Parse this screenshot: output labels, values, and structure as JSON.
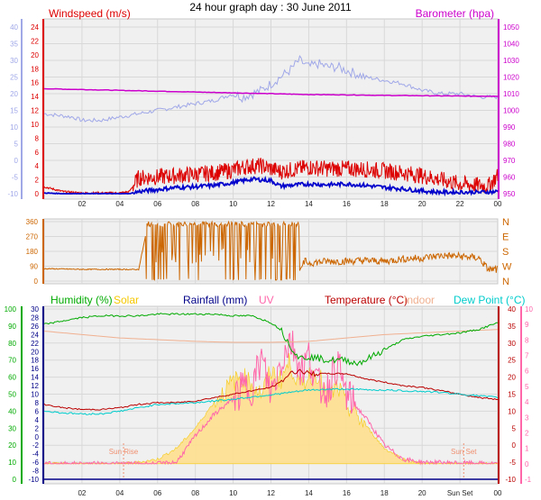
{
  "title": "24 hour graph day : 30 June 2011",
  "time_ticks": [
    "02",
    "04",
    "06",
    "08",
    "10",
    "12",
    "14",
    "16",
    "18",
    "20",
    "22",
    "00"
  ],
  "time_ticks_bottom": [
    "02",
    "04",
    "06",
    "08",
    "10",
    "12",
    "14",
    "16",
    "18",
    "20",
    "Sun Set",
    "00"
  ],
  "colors": {
    "windspeed": "#dd0000",
    "windavg": "#0000cc",
    "gust": "#a0a8e8",
    "barometer": "#cc00cc",
    "direction": "#cc6600",
    "humidity": "#00aa00",
    "solar": "#f5c800",
    "rainfall": "#000088",
    "uv": "#ff66aa",
    "temperature": "#bb0000",
    "indoor": "#f0b090",
    "dewpoint": "#00cccc",
    "plot_bg": "#f0f0f0",
    "left_axis": "#a0a8e8"
  },
  "chart_data": [
    {
      "id": "wind",
      "type": "line",
      "legend": {
        "windspeed": "Windspeed (m/s)",
        "barometer": "Barometer (hpa)"
      },
      "axes": {
        "left_outer": {
          "ticks": [
            -10,
            -5,
            0,
            5,
            10,
            15,
            20,
            25,
            30,
            35,
            40
          ],
          "color": "#a0a8e8"
        },
        "left_inner": {
          "ticks": [
            0,
            2,
            4,
            6,
            8,
            10,
            12,
            14,
            16,
            18,
            20,
            22,
            24
          ],
          "color": "#dd0000"
        },
        "right": {
          "ticks": [
            950,
            960,
            970,
            980,
            990,
            1000,
            1010,
            1020,
            1030,
            1040,
            1050
          ],
          "color": "#cc00cc"
        }
      },
      "series": [
        {
          "key": "gust",
          "x": [
            0,
            1.5,
            2,
            3,
            4,
            5,
            6,
            7,
            8,
            9,
            10,
            10.5,
            11,
            11.5,
            12,
            12.5,
            13,
            13.5,
            14,
            14.5,
            15,
            15.5,
            16,
            16.5,
            17,
            18,
            19,
            20,
            21,
            22,
            23,
            24
          ],
          "y": [
            14,
            13,
            12,
            12,
            13,
            14,
            15,
            16,
            17,
            18,
            20,
            19,
            20,
            21,
            23,
            25,
            27,
            30,
            28,
            29,
            28,
            28,
            27,
            26,
            25,
            24,
            23,
            21,
            20,
            20,
            19,
            19
          ]
        },
        {
          "key": "barometer",
          "x": [
            0,
            2,
            4,
            6,
            8,
            10,
            12,
            14,
            16,
            18,
            20,
            22,
            24
          ],
          "y": [
            1013,
            1012.5,
            1012,
            1011.5,
            1011,
            1010.5,
            1010,
            1009.5,
            1009.3,
            1009,
            1008.8,
            1008.6,
            1008.5
          ]
        },
        {
          "key": "windspeed",
          "x": [
            0,
            1,
            2,
            3,
            4,
            4.5,
            5,
            6,
            7,
            8,
            9,
            10,
            10.5,
            11,
            11.5,
            12,
            12.5,
            13,
            13.5,
            14,
            15,
            16,
            17,
            18,
            19,
            20,
            21,
            22,
            23,
            23.5,
            24
          ],
          "y": [
            1.0,
            0.3,
            0.1,
            0.1,
            0.1,
            0.3,
            2.3,
            2.4,
            2.6,
            2.8,
            3.0,
            3.4,
            3.8,
            4.0,
            4.0,
            3.6,
            3.2,
            3.4,
            3.6,
            3.8,
            3.6,
            3.6,
            3.5,
            3.3,
            3.0,
            2.6,
            2.0,
            1.4,
            1.2,
            1.1,
            2.6
          ]
        },
        {
          "key": "windavg",
          "x": [
            0,
            1,
            2,
            3,
            4,
            4.5,
            5,
            6,
            7,
            8,
            9,
            10,
            11,
            12,
            12.5,
            13,
            14,
            15,
            16,
            17,
            18,
            19,
            20,
            21,
            22,
            23,
            24
          ],
          "y": [
            0.1,
            0,
            0,
            0,
            0,
            0,
            0.3,
            0.6,
            0.9,
            1.0,
            1.2,
            1.6,
            2.1,
            1.9,
            1.1,
            1.2,
            1.4,
            1.3,
            1.4,
            1.2,
            0.9,
            0.7,
            0.4,
            0.2,
            0.2,
            0.2,
            0.3
          ]
        }
      ]
    },
    {
      "id": "direction",
      "type": "line",
      "axes": {
        "left": {
          "ticks": [
            0,
            90,
            180,
            270,
            360
          ],
          "color": "#cc6600"
        },
        "right_labels": [
          "N",
          "W",
          "S",
          "E",
          "N"
        ]
      },
      "series": [
        {
          "key": "direction",
          "x": [
            0,
            1,
            2,
            3,
            4,
            5,
            5.5,
            6,
            7,
            8,
            9,
            10,
            11,
            12,
            13,
            13.4,
            13.8,
            14,
            15,
            16,
            17,
            18,
            19,
            20,
            21,
            22,
            23,
            23.5,
            24
          ],
          "y": [
            75,
            73,
            71,
            71,
            71,
            70,
            350,
            330,
            340,
            340,
            320,
            350,
            340,
            345,
            330,
            40,
            120,
            110,
            120,
            120,
            125,
            120,
            135,
            140,
            155,
            150,
            140,
            70,
            70
          ]
        }
      ]
    },
    {
      "id": "weather",
      "type": "line",
      "legend": {
        "humidity": "Humidity (%)",
        "solar": "Solar",
        "rainfall": "Rainfall (mm)",
        "uv": "UV",
        "temperature": "Temperature (°C)",
        "indoor": "Indoor",
        "dewpoint": "Dew Point (°C)"
      },
      "axes": {
        "left_outer": {
          "ticks": [
            0,
            10,
            20,
            30,
            40,
            50,
            60,
            70,
            80,
            90,
            100
          ],
          "color": "#00aa00"
        },
        "left_inner": {
          "ticks": [
            -10,
            -8,
            -6,
            -4,
            -2,
            0,
            2,
            4,
            6,
            8,
            10,
            12,
            14,
            16,
            18,
            20,
            22,
            24,
            26,
            28,
            30
          ],
          "color": "#000088"
        },
        "right_inner": {
          "ticks": [
            -10,
            -5,
            0,
            5,
            10,
            15,
            20,
            25,
            30,
            35,
            40
          ],
          "color": "#bb0000"
        },
        "right_outer": {
          "ticks": [
            -1,
            0,
            1,
            2,
            3,
            4,
            5,
            6,
            7,
            8,
            9,
            10
          ],
          "color": "#ff66aa"
        }
      },
      "annotations": [
        {
          "label": "Sun Rise",
          "x": 4.2
        },
        {
          "label": "Sun Set",
          "x": 22.2
        }
      ],
      "series": [
        {
          "key": "solar",
          "x": [
            0,
            4,
            5,
            6,
            7,
            8,
            9,
            10,
            10.5,
            11,
            11.5,
            12,
            12.5,
            13,
            13.5,
            14,
            14.5,
            15,
            15.5,
            16,
            17,
            18,
            19,
            20,
            24
          ],
          "y": [
            0,
            0,
            0.1,
            0.3,
            1.0,
            2.3,
            4.0,
            5.3,
            5.6,
            5.2,
            4.5,
            6.0,
            5.4,
            6.6,
            5.0,
            5.7,
            5.9,
            4.2,
            5.0,
            3.8,
            2.5,
            1.0,
            0.3,
            0,
            0
          ]
        },
        {
          "key": "uv",
          "x": [
            0,
            6,
            7,
            8,
            9,
            10,
            10.5,
            11,
            11.5,
            12,
            12.5,
            13,
            13.3,
            13.6,
            14,
            14.5,
            15,
            15.5,
            16,
            17,
            18,
            19,
            20,
            24
          ],
          "y": [
            0,
            0,
            0.1,
            1.8,
            3.2,
            4.2,
            4.8,
            5.0,
            6.8,
            4.5,
            6.5,
            8.0,
            7.2,
            6.0,
            7.0,
            5.0,
            4.8,
            6.5,
            4.4,
            3.0,
            1.2,
            0.3,
            0.1,
            0
          ]
        },
        {
          "key": "indoor",
          "x": [
            0,
            2,
            4,
            6,
            8,
            10,
            12,
            14,
            16,
            18,
            20,
            22,
            24
          ],
          "y": [
            33.5,
            32.5,
            31.5,
            31,
            30.5,
            30.2,
            30.2,
            30.5,
            31.5,
            32.5,
            33,
            33.5,
            34
          ]
        },
        {
          "key": "humidity",
          "x": [
            0,
            1,
            2,
            3,
            4,
            5,
            6,
            7,
            8,
            9,
            10,
            11,
            11.5,
            12,
            12.5,
            13,
            13.5,
            14,
            15,
            16,
            16.5,
            17,
            18,
            19,
            20,
            21,
            22,
            23,
            24
          ],
          "y": [
            91,
            93,
            95,
            96,
            96,
            96,
            97,
            97,
            97,
            97,
            96,
            96,
            94,
            92,
            88,
            79,
            71,
            72,
            70,
            70,
            68,
            70,
            76,
            82,
            84,
            85,
            86,
            88,
            92
          ]
        },
        {
          "key": "temperature",
          "x": [
            0,
            1,
            2,
            3,
            4,
            5,
            6,
            7,
            8,
            9,
            10,
            11,
            12,
            12.5,
            13,
            13.5,
            14,
            15,
            16,
            17,
            18,
            19,
            20,
            21,
            22,
            23,
            24
          ],
          "y": [
            12,
            11,
            10.5,
            10.5,
            11,
            12,
            12.5,
            12.5,
            13,
            14,
            15,
            16,
            17,
            18.5,
            21,
            22,
            21,
            21,
            21,
            19.5,
            18.5,
            17.5,
            17,
            16,
            15,
            14,
            13.5
          ]
        },
        {
          "key": "dewpoint",
          "x": [
            0,
            1,
            2,
            3,
            4,
            5,
            6,
            7,
            8,
            9,
            10,
            11,
            12,
            13,
            14,
            15,
            16,
            17,
            18,
            19,
            20,
            21,
            22,
            23,
            24
          ],
          "y": [
            10,
            9.5,
            9.2,
            9.2,
            10,
            11,
            12,
            12.2,
            12.5,
            13,
            13.5,
            14.2,
            14.8,
            15.5,
            16.2,
            16.4,
            16.5,
            16.3,
            16.2,
            16,
            15.8,
            15.5,
            15,
            14.5,
            14
          ]
        },
        {
          "key": "rainfall",
          "x": [
            0,
            24
          ],
          "y": [
            -10,
            -10
          ]
        }
      ]
    }
  ]
}
